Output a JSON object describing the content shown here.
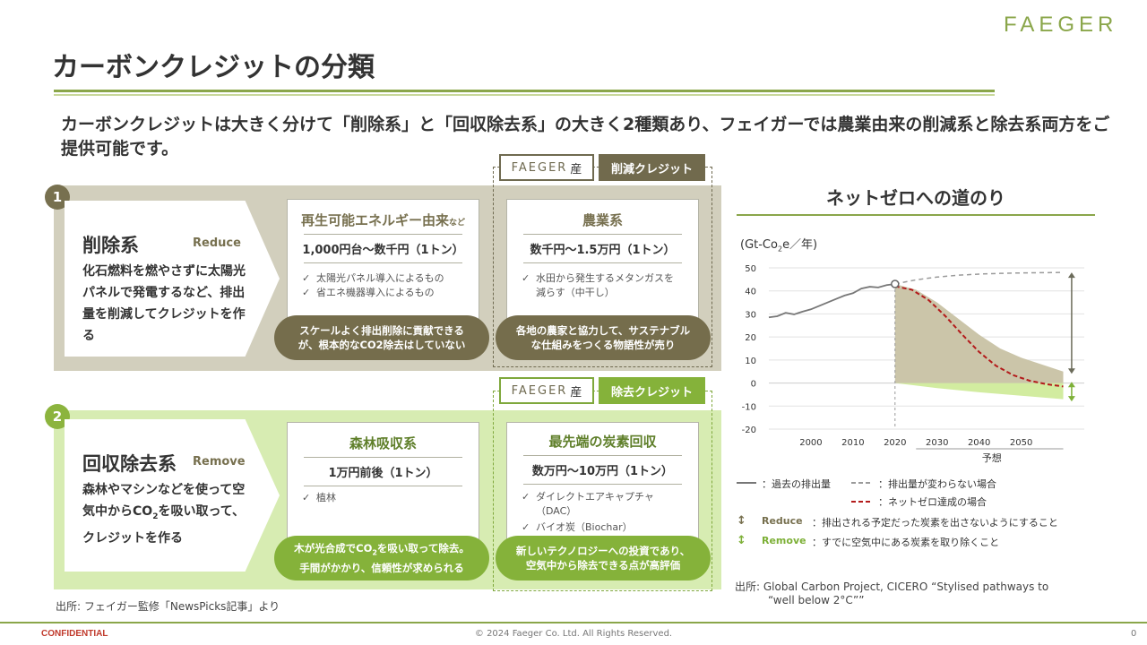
{
  "brand": "FAEGER",
  "title": "カーボンクレジットの分類",
  "lead": "カーボンクレジットは大きく分けて「削除系」と「回収除去系」の大きく2種類あり、フェイガーでは農業由来の削減系と除去系両方をご提供可能です。",
  "faeger_badge": {
    "brand": "FAEGER",
    "suffix": "産"
  },
  "tags": {
    "reduce": "削減クレジット",
    "remove": "除去クレジット"
  },
  "categories": [
    {
      "number": "1",
      "name": "削除系",
      "en": "Reduce",
      "desc": "化石燃料を燃やさずに太陽光パネルで発電するなど、排出量を削減してクレジットを作る",
      "cards": [
        {
          "title": "再生可能エネルギー由来",
          "title_suffix": "など",
          "price": "1,000円台～数千円（1トン）",
          "items": [
            "太陽光パネル導入によるもの",
            "省エネ機器導入によるもの"
          ],
          "note": "スケールよく排出削除に貢献できるが、根本的なCO2除去はしていない"
        },
        {
          "title": "農業系",
          "title_suffix": "",
          "price": "数千円～1.5万円（1トン）",
          "items": [
            "水田から発生するメタンガスを減らす（中干し）"
          ],
          "note": "各地の農家と協力して、サステナブルな仕組みをつくる物語性が売り"
        }
      ]
    },
    {
      "number": "2",
      "name": "回収除去系",
      "en": "Remove",
      "desc_pre": "森林やマシンなどを使って空気中からCO",
      "desc_sub": "2",
      "desc_post": "を吸い取って、クレジットを作る",
      "cards": [
        {
          "title": "森林吸収系",
          "title_suffix": "",
          "price": "1万円前後（1トン）",
          "items": [
            "植林"
          ],
          "note_pre": "木が光合成でCO",
          "note_sub": "2",
          "note_post": "を吸い取って除去。手間がかかり、信頼性が求められる"
        },
        {
          "title": "最先端の炭素回収",
          "title_suffix": "",
          "price": "数万円～10万円（1トン）",
          "items": [
            "ダイレクトエアキャプチャ（DAC）",
            "バイオ炭（Biochar）"
          ],
          "note": "新しいテクノロジーへの投資であり、空気中から除去できる点が高評価"
        }
      ]
    }
  ],
  "source_left": "出所: フェイガー監修「NewsPicks記事」より",
  "source_right_1": "出所:  Global Carbon Project, CICERO “Stylised pathways to",
  "source_right_2": "“well below 2°C””",
  "footer": {
    "confidential": "CONFIDENTIAL",
    "copyright": "© 2024 Faeger Co. Ltd. All Rights Reserved.",
    "page": "0"
  },
  "chart_data": {
    "type": "area",
    "title": "ネットゼロへの道のり",
    "ylabel_pre": "(Gt-Co",
    "ylabel_sub": "2",
    "ylabel_post": "e／年)",
    "ylim": [
      -20,
      50
    ],
    "yticks": [
      "50",
      "40",
      "30",
      "20",
      "10",
      "0",
      "-10",
      "-20"
    ],
    "xlim": [
      1990,
      2065
    ],
    "xticks": [
      "2000",
      "2010",
      "2020",
      "2030",
      "2040",
      "2050"
    ],
    "forecast_label": "予想",
    "grid": true,
    "series": [
      {
        "name": "過去の排出量",
        "style": "solid",
        "color": "#777777",
        "x": [
          1990,
          1992,
          1994,
          1996,
          1998,
          2000,
          2002,
          2004,
          2006,
          2008,
          2010,
          2012,
          2014,
          2016,
          2018,
          2020
        ],
        "y": [
          28.5,
          29,
          30.5,
          29.8,
          31,
          32,
          33.5,
          35,
          36.5,
          38,
          39,
          41,
          41.8,
          41.5,
          42.5,
          43
        ]
      },
      {
        "name": "排出量が変わらない場合",
        "style": "dashed",
        "color": "#9a9a9a",
        "x": [
          2020,
          2025,
          2030,
          2035,
          2040,
          2045,
          2050,
          2055,
          2060
        ],
        "y": [
          43,
          44.8,
          46,
          46.8,
          47.3,
          47.6,
          47.8,
          47.9,
          48
        ]
      },
      {
        "name": "ネットゼロ達成の場合",
        "style": "dashed",
        "color": "#b31b1b",
        "x": [
          2020,
          2024,
          2028,
          2032,
          2036,
          2040,
          2044,
          2048,
          2052,
          2056,
          2060
        ],
        "y": [
          42,
          40.5,
          36,
          29,
          21,
          13.5,
          7.5,
          3.5,
          1,
          -0.5,
          -1.5
        ]
      }
    ],
    "reduce_area": {
      "color": "#cbc5a9",
      "x_top": [
        2020,
        2025,
        2030,
        2035,
        2040,
        2045,
        2050,
        2055,
        2060
      ],
      "y_top": [
        43,
        40.5,
        35,
        28,
        21,
        15,
        11,
        8,
        5
      ],
      "x_bottom": [
        2060,
        2040,
        2020
      ],
      "y_bottom": [
        0,
        0,
        0
      ]
    },
    "remove_area": {
      "color": "#d2eca0",
      "x_top": [
        2020,
        2060
      ],
      "y_top": [
        0,
        0
      ],
      "x_bottom": [
        2060,
        2050,
        2040,
        2030,
        2020
      ],
      "y_bottom": [
        -7,
        -5.5,
        -4,
        -2.2,
        0
      ]
    },
    "arrows": [
      {
        "name": "reduce",
        "x": 2062,
        "y_from": 48,
        "y_to": 4,
        "color": "#6b6b5a"
      },
      {
        "name": "remove",
        "x": 2062,
        "y_from": 0.5,
        "y_to": -8,
        "color": "#7db037"
      }
    ],
    "legend": {
      "past": "：過去の排出量",
      "bau": "：排出量が変わらない場合",
      "netzero": "：ネットゼロ達成の場合"
    },
    "arrow_legend": [
      {
        "label": "Reduce",
        "desc": "：排出される予定だった炭素を出さないようにすること",
        "color": "#77704f"
      },
      {
        "label": "Remove",
        "desc": "：すでに空気中にある炭素を取り除くこと",
        "color": "#7db037"
      }
    ],
    "colors": {
      "reduce": "#cbc5a9",
      "remove": "#d2eca0",
      "netzero": "#b31b1b",
      "past": "#777777",
      "bau": "#9a9a9a"
    }
  }
}
